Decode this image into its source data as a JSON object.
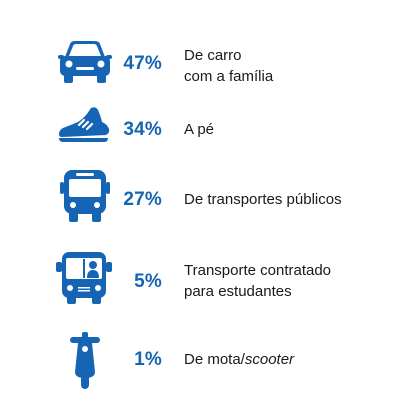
{
  "chart_data": {
    "type": "bar",
    "title": "",
    "unit": "%",
    "categories": [
      "De carro com a família",
      "A pé",
      "De transportes públicos",
      "Transporte contratado para estudantes",
      "De mota/scooter"
    ],
    "values": [
      47,
      34,
      27,
      5,
      1
    ],
    "rows": [
      {
        "icon": "car-icon",
        "value_label": "47%",
        "label": "De carro\ncom a família"
      },
      {
        "icon": "shoe-icon",
        "value_label": "34%",
        "label": "A pé"
      },
      {
        "icon": "bus-icon",
        "value_label": "27%",
        "label": "De transportes públicos"
      },
      {
        "icon": "school-bus-icon",
        "value_label": "5%",
        "label": "Transporte contratado\npara estudantes"
      },
      {
        "icon": "scooter-icon",
        "value_label": "1%",
        "label_prefix": "De mota/",
        "label_italic": "scooter"
      }
    ],
    "colors": {
      "icon": "#1565b4",
      "value": "#1565b4",
      "text": "#1a1a1a"
    }
  }
}
